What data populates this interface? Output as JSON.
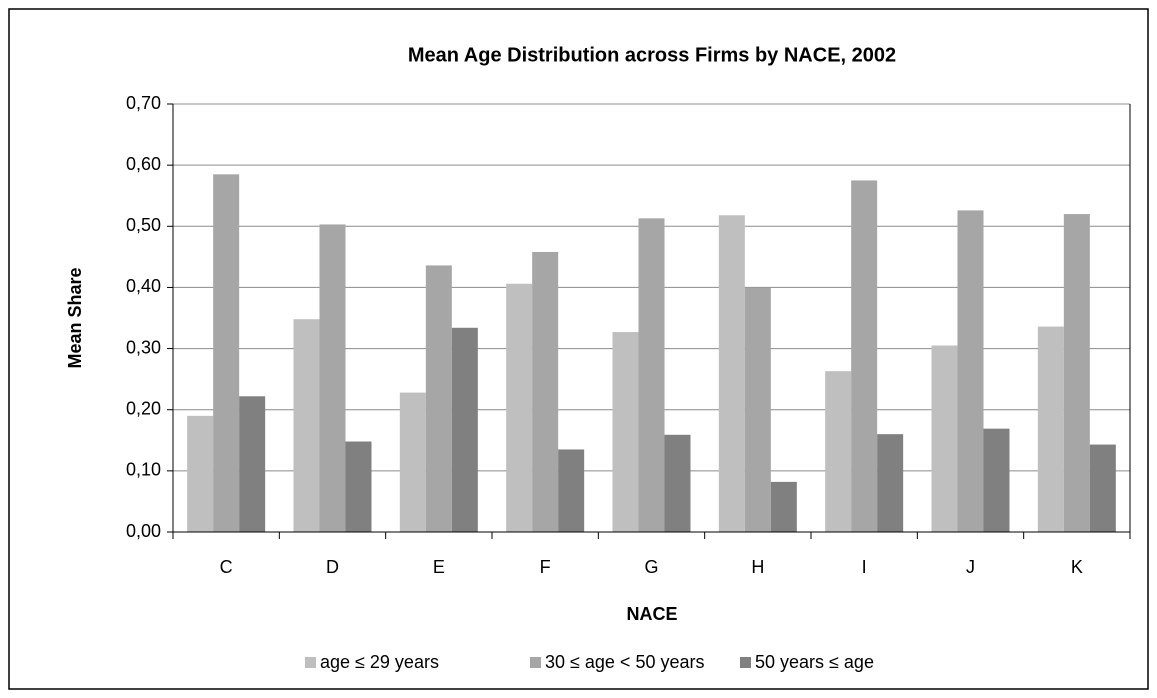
{
  "chart_data": {
    "type": "bar",
    "title": "Mean Age Distribution across Firms by NACE, 2002",
    "x_label": "NACE",
    "y_label": "Mean Share",
    "categories": [
      "C",
      "D",
      "E",
      "F",
      "G",
      "H",
      "I",
      "J",
      "K"
    ],
    "series": [
      {
        "name": "age ≤ 29 years",
        "color": "#bfbfbf",
        "values": [
          0.19,
          0.348,
          0.228,
          0.406,
          0.327,
          0.518,
          0.263,
          0.305,
          0.336
        ]
      },
      {
        "name": "30 ≤ age < 50 years",
        "color": "#a6a6a6",
        "values": [
          0.585,
          0.503,
          0.436,
          0.458,
          0.513,
          0.4,
          0.575,
          0.526,
          0.52
        ]
      },
      {
        "name": "50 years ≤ age",
        "color": "#808080",
        "values": [
          0.222,
          0.148,
          0.334,
          0.135,
          0.159,
          0.082,
          0.16,
          0.169,
          0.143
        ]
      }
    ],
    "ylim": [
      0,
      0.7
    ],
    "yticks": [
      {
        "value": 0,
        "label": "0,00"
      },
      {
        "value": 0.1,
        "label": "0,10"
      },
      {
        "value": 0.2,
        "label": "0,20"
      },
      {
        "value": 0.3,
        "label": "0,30"
      },
      {
        "value": 0.4,
        "label": "0,40"
      },
      {
        "value": 0.5,
        "label": "0,50"
      },
      {
        "value": 0.6,
        "label": "0,60"
      },
      {
        "value": 0.7,
        "label": "0,70"
      }
    ],
    "grid": true,
    "legend": "bottom"
  }
}
